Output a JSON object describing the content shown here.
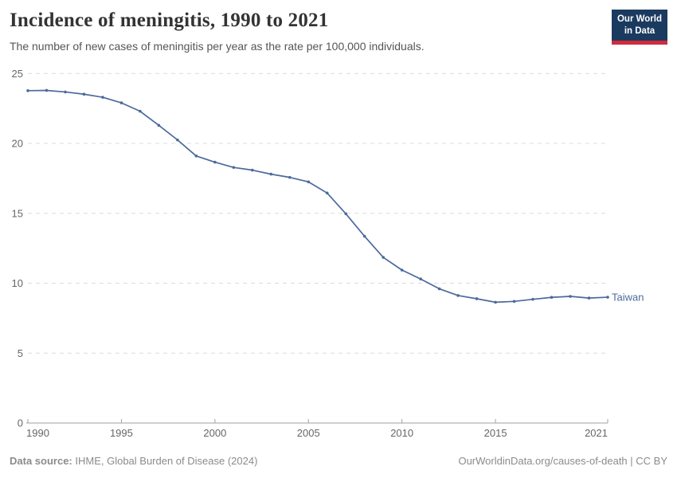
{
  "logo": {
    "line1": "Our World",
    "line2": "in Data",
    "bg_color": "#1b3a5f",
    "bar_color": "#d12b3c"
  },
  "chart_data": {
    "type": "line",
    "title": "Incidence of meningitis, 1990 to 2021",
    "subtitle": "The number of new cases of meningitis per year as the rate per 100,000 individuals.",
    "xlabel": "",
    "ylabel": "",
    "xlim": [
      1990,
      2021
    ],
    "ylim": [
      0,
      25
    ],
    "grid": "horizontal-dashed",
    "legend_position": "end-of-line",
    "x_ticks": [
      1990,
      1995,
      2000,
      2005,
      2010,
      2015,
      2021
    ],
    "x_tick_labels": [
      "1990",
      "1995",
      "2000",
      "2005",
      "2010",
      "2015",
      "2021"
    ],
    "y_ticks": [
      0,
      5,
      10,
      15,
      20,
      25
    ],
    "y_tick_labels": [
      "0",
      "5",
      "10",
      "15",
      "20",
      "25"
    ],
    "x": [
      1990,
      1991,
      1992,
      1993,
      1994,
      1995,
      1996,
      1997,
      1998,
      1999,
      2000,
      2001,
      2002,
      2003,
      2004,
      2005,
      2006,
      2007,
      2008,
      2009,
      2010,
      2011,
      2012,
      2013,
      2014,
      2015,
      2016,
      2017,
      2018,
      2019,
      2020,
      2021
    ],
    "series": [
      {
        "name": "Taiwan",
        "color": "#4c6a9c",
        "values": [
          23.77,
          23.79,
          23.68,
          23.52,
          23.3,
          22.9,
          22.3,
          21.29,
          20.25,
          19.1,
          18.66,
          18.28,
          18.09,
          17.8,
          17.57,
          17.25,
          16.45,
          14.97,
          13.36,
          11.85,
          10.94,
          10.3,
          9.6,
          9.12,
          8.89,
          8.64,
          8.7,
          8.85,
          8.99,
          9.06,
          8.94,
          9.0
        ]
      }
    ]
  },
  "footer": {
    "source_label": "Data source:",
    "source_text": " IHME, Global Burden of Disease (2024)",
    "license_text": "OurWorldinData.org/causes-of-death | CC BY"
  }
}
